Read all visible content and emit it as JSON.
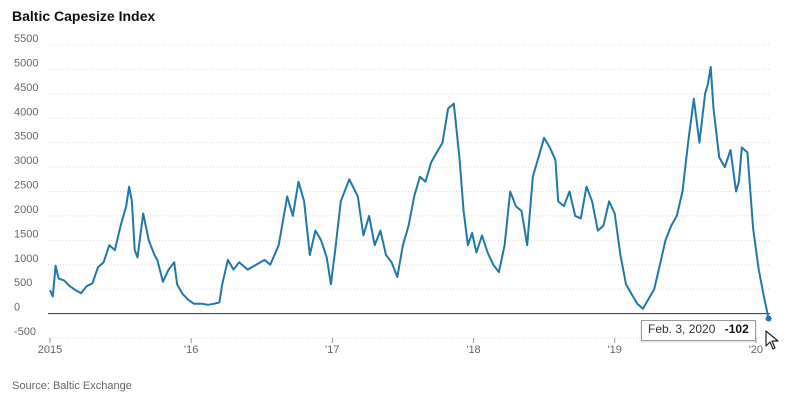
{
  "chart_data": {
    "type": "line",
    "title": "Baltic Capesize Index",
    "source": "Source: Baltic Exchange",
    "ylim": [
      -500,
      5500
    ],
    "y_ticks": [
      -500,
      0,
      500,
      1000,
      1500,
      2000,
      2500,
      3000,
      3500,
      4000,
      4500,
      5000,
      5500
    ],
    "y_tick_labels": [
      "-500",
      "0",
      "500",
      "1000",
      "1500",
      "2000",
      "2500",
      "3000",
      "3500",
      "4000",
      "4500",
      "5000",
      "5500"
    ],
    "x_tick_labels": [
      "2015",
      "'16",
      "'17",
      "'18",
      "'19",
      "'20"
    ],
    "x_tick_years": [
      2015,
      2016,
      2017,
      2018,
      2019,
      2020
    ],
    "grid": true,
    "x": [
      2015.0,
      2015.02,
      2015.04,
      2015.06,
      2015.1,
      2015.14,
      2015.18,
      2015.22,
      2015.26,
      2015.3,
      2015.34,
      2015.38,
      2015.42,
      2015.46,
      2015.5,
      2015.54,
      2015.56,
      2015.58,
      2015.6,
      2015.62,
      2015.66,
      2015.7,
      2015.72,
      2015.74,
      2015.76,
      2015.8,
      2015.84,
      2015.88,
      2015.9,
      2015.92,
      2015.94,
      2015.98,
      2016.02,
      2016.08,
      2016.12,
      2016.16,
      2016.2,
      2016.22,
      2016.26,
      2016.3,
      2016.34,
      2016.4,
      2016.46,
      2016.52,
      2016.56,
      2016.62,
      2016.68,
      2016.72,
      2016.76,
      2016.8,
      2016.84,
      2016.88,
      2016.92,
      2016.96,
      2016.99,
      2017.02,
      2017.06,
      2017.12,
      2017.18,
      2017.22,
      2017.26,
      2017.3,
      2017.34,
      2017.38,
      2017.42,
      2017.46,
      2017.5,
      2017.54,
      2017.58,
      2017.62,
      2017.66,
      2017.7,
      2017.74,
      2017.78,
      2017.82,
      2017.86,
      2017.9,
      2017.93,
      2017.96,
      2017.99,
      2018.02,
      2018.06,
      2018.1,
      2018.14,
      2018.18,
      2018.22,
      2018.26,
      2018.3,
      2018.34,
      2018.38,
      2018.42,
      2018.46,
      2018.5,
      2018.54,
      2018.58,
      2018.6,
      2018.64,
      2018.68,
      2018.72,
      2018.76,
      2018.8,
      2018.84,
      2018.88,
      2018.92,
      2018.96,
      2019.0,
      2019.04,
      2019.08,
      2019.12,
      2019.16,
      2019.2,
      2019.24,
      2019.28,
      2019.32,
      2019.36,
      2019.4,
      2019.44,
      2019.48,
      2019.52,
      2019.56,
      2019.6,
      2019.64,
      2019.66,
      2019.68,
      2019.7,
      2019.74,
      2019.78,
      2019.82,
      2019.86,
      2019.88,
      2019.9,
      2019.94,
      2019.98,
      2020.02,
      2020.06,
      2020.09
    ],
    "series": [
      {
        "values": [
          480,
          350,
          980,
          720,
          680,
          560,
          480,
          420,
          560,
          620,
          950,
          1050,
          1400,
          1300,
          1800,
          2200,
          2600,
          2300,
          1300,
          1150,
          2050,
          1500,
          1350,
          1200,
          1100,
          650,
          900,
          1050,
          600,
          500,
          400,
          280,
          200,
          200,
          180,
          200,
          230,
          600,
          1100,
          900,
          1050,
          900,
          1000,
          1100,
          1000,
          1400,
          2400,
          2000,
          2700,
          2300,
          1200,
          1700,
          1500,
          1150,
          600,
          1300,
          2300,
          2750,
          2400,
          1600,
          2000,
          1400,
          1700,
          1200,
          1050,
          750,
          1400,
          1800,
          2400,
          2800,
          2700,
          3100,
          3300,
          3500,
          4200,
          4300,
          3200,
          2100,
          1400,
          1650,
          1250,
          1600,
          1250,
          1000,
          850,
          1400,
          2500,
          2200,
          2100,
          1400,
          2800,
          3200,
          3600,
          3400,
          3150,
          2300,
          2200,
          2500,
          2000,
          1950,
          2600,
          2300,
          1700,
          1800,
          2300,
          2050,
          1200,
          600,
          400,
          200,
          100,
          300,
          500,
          1000,
          1500,
          1800,
          2000,
          2500,
          3500,
          4400,
          3500,
          4500,
          4700,
          5050,
          4200,
          3200,
          3000,
          3350,
          2500,
          2700,
          3400,
          3300,
          1750,
          900,
          300,
          -102
        ]
      }
    ],
    "tooltip": {
      "date": "Feb. 3, 2020",
      "value": "-102"
    },
    "line_color": "#1f78a8"
  }
}
